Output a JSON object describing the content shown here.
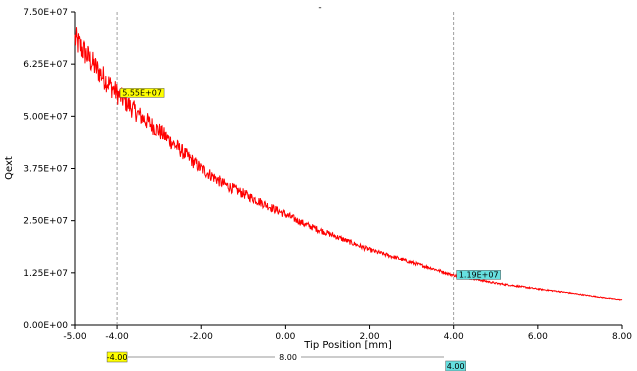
{
  "chart_data": {
    "type": "line",
    "title": "-",
    "xlabel": "Tip Position [mm]",
    "ylabel": "Qext",
    "xlim": [
      -5.0,
      8.0
    ],
    "ylim": [
      0,
      75000000
    ],
    "x_ticks": [
      "-5.00",
      "-4.00",
      "-2.00",
      "0.00",
      "2.00",
      "4.00",
      "6.00",
      "8.00"
    ],
    "y_ticks": [
      "0.00E+00",
      "1.25E+07",
      "2.50E+07",
      "3.75E+07",
      "5.00E+07",
      "6.25E+07",
      "7.50E+07"
    ],
    "grid": false,
    "series": [
      {
        "color": "#ff0000",
        "x": [
          -5.0,
          -4.5,
          -4.0,
          -3.5,
          -3.0,
          -2.5,
          -2.0,
          -1.5,
          -1.0,
          -0.5,
          0.0,
          0.5,
          1.0,
          1.5,
          2.0,
          2.5,
          3.0,
          3.5,
          4.0,
          4.5,
          5.0,
          5.5,
          6.0,
          6.5,
          7.0,
          7.5,
          8.0
        ],
        "y": [
          68500000,
          61500000,
          55500000,
          50500000,
          46500000,
          42000000,
          37500000,
          34000000,
          31500000,
          29000000,
          26500000,
          24000000,
          22000000,
          20000000,
          18000000,
          16500000,
          15000000,
          13500000,
          11900000,
          11000000,
          10000000,
          9300000,
          8600000,
          8000000,
          7300000,
          6600000,
          6000000
        ]
      }
    ],
    "cursors": [
      {
        "x": -4.0,
        "value_label": "5.55E+07",
        "value": 55500000,
        "axis_label": "-4.00",
        "color": "#ffff00"
      },
      {
        "x": 4.0,
        "value_label": "1.19E+07",
        "value": 11900000,
        "axis_label": "4.00",
        "color": "#66e0e0"
      }
    ],
    "span_label": "8.00"
  }
}
